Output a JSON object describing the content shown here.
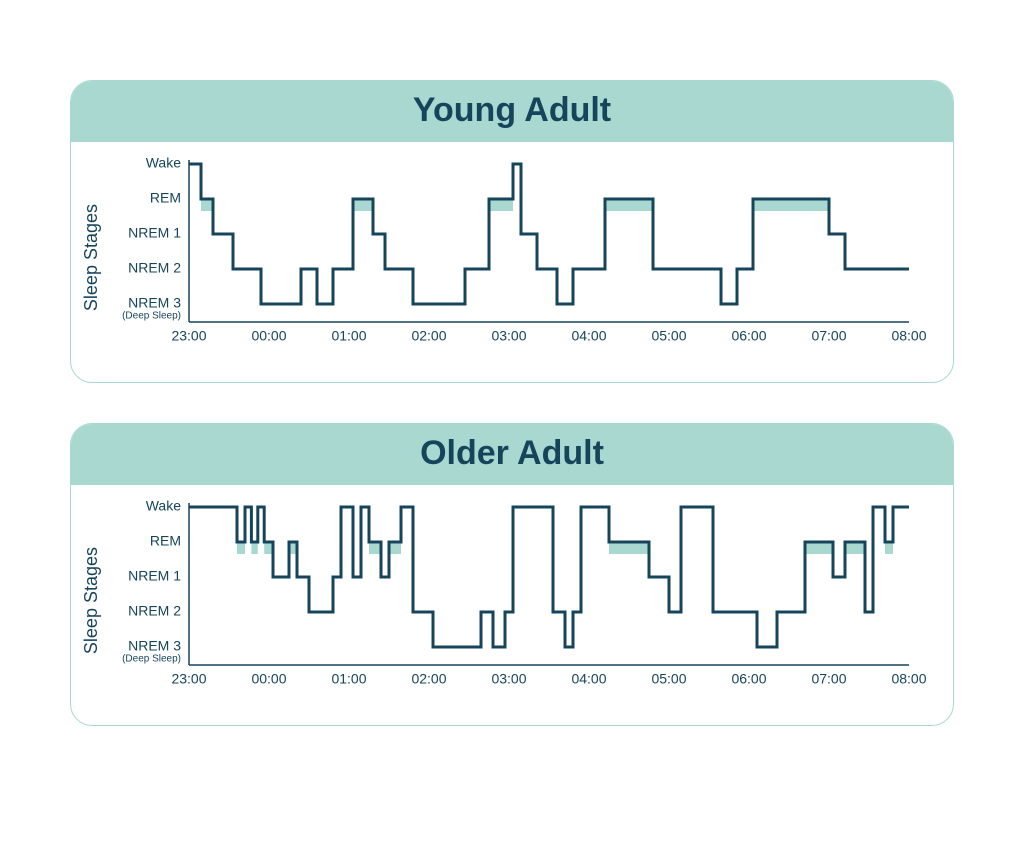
{
  "colors": {
    "background": "#ffffff",
    "accent": "#a9d8d1",
    "ink": "#16445b",
    "rem_fill": "#a9d8d1"
  },
  "layout": {
    "page_padding_top": 80,
    "page_padding_x": 70,
    "panel_gap": 40,
    "panel_border_radius": 22,
    "chart_inner_height": 160,
    "chart_inner_width": 720
  },
  "stages": {
    "labels": [
      "Wake",
      "REM",
      "NREM 1",
      "NREM 2",
      "NREM 3"
    ],
    "sublabels": {
      "4": "(Deep Sleep)"
    },
    "axis_title": "Sleep Stages",
    "y_values": {
      "Wake": 0,
      "REM": 1,
      "NREM 1": 2,
      "NREM 2": 3,
      "NREM 3": 4
    },
    "rem_level": 1,
    "rem_fill_height": 12
  },
  "time_axis": {
    "start_hour": 23,
    "end_hour": 32,
    "tick_hours": [
      23,
      24,
      25,
      26,
      27,
      28,
      29,
      30,
      31,
      32
    ],
    "tick_labels": [
      "23:00",
      "00:00",
      "01:00",
      "02:00",
      "03:00",
      "04:00",
      "05:00",
      "06:00",
      "07:00",
      "08:00"
    ]
  },
  "line_style": {
    "stroke_width": 3,
    "stroke_color": "#16445b"
  },
  "typography": {
    "title_fontsize": 34,
    "title_weight": 700,
    "axis_title_fontsize": 18,
    "stage_label_fontsize": 14,
    "stage_sublabel_fontsize": 10,
    "time_label_fontsize": 14
  },
  "panels": [
    {
      "id": "young",
      "title": "Young Adult",
      "series": [
        {
          "t": 23.0,
          "s": 0
        },
        {
          "t": 23.15,
          "s": 0
        },
        {
          "t": 23.15,
          "s": 1
        },
        {
          "t": 23.3,
          "s": 1
        },
        {
          "t": 23.3,
          "s": 2
        },
        {
          "t": 23.55,
          "s": 2
        },
        {
          "t": 23.55,
          "s": 3
        },
        {
          "t": 23.9,
          "s": 3
        },
        {
          "t": 23.9,
          "s": 4
        },
        {
          "t": 24.4,
          "s": 4
        },
        {
          "t": 24.4,
          "s": 3
        },
        {
          "t": 24.6,
          "s": 3
        },
        {
          "t": 24.6,
          "s": 4
        },
        {
          "t": 24.8,
          "s": 4
        },
        {
          "t": 24.8,
          "s": 3
        },
        {
          "t": 25.05,
          "s": 3
        },
        {
          "t": 25.05,
          "s": 1
        },
        {
          "t": 25.3,
          "s": 1
        },
        {
          "t": 25.3,
          "s": 2
        },
        {
          "t": 25.45,
          "s": 2
        },
        {
          "t": 25.45,
          "s": 3
        },
        {
          "t": 25.8,
          "s": 3
        },
        {
          "t": 25.8,
          "s": 4
        },
        {
          "t": 26.45,
          "s": 4
        },
        {
          "t": 26.45,
          "s": 3
        },
        {
          "t": 26.75,
          "s": 3
        },
        {
          "t": 26.75,
          "s": 1
        },
        {
          "t": 27.05,
          "s": 1
        },
        {
          "t": 27.05,
          "s": 0
        },
        {
          "t": 27.15,
          "s": 0
        },
        {
          "t": 27.15,
          "s": 2
        },
        {
          "t": 27.35,
          "s": 2
        },
        {
          "t": 27.35,
          "s": 3
        },
        {
          "t": 27.6,
          "s": 3
        },
        {
          "t": 27.6,
          "s": 4
        },
        {
          "t": 27.8,
          "s": 4
        },
        {
          "t": 27.8,
          "s": 3
        },
        {
          "t": 28.2,
          "s": 3
        },
        {
          "t": 28.2,
          "s": 1
        },
        {
          "t": 28.8,
          "s": 1
        },
        {
          "t": 28.8,
          "s": 3
        },
        {
          "t": 29.65,
          "s": 3
        },
        {
          "t": 29.65,
          "s": 4
        },
        {
          "t": 29.85,
          "s": 4
        },
        {
          "t": 29.85,
          "s": 3
        },
        {
          "t": 30.05,
          "s": 3
        },
        {
          "t": 30.05,
          "s": 1
        },
        {
          "t": 31.0,
          "s": 1
        },
        {
          "t": 31.0,
          "s": 2
        },
        {
          "t": 31.2,
          "s": 2
        },
        {
          "t": 31.2,
          "s": 3
        },
        {
          "t": 32.0,
          "s": 3
        }
      ]
    },
    {
      "id": "older",
      "title": "Older Adult",
      "series": [
        {
          "t": 23.0,
          "s": 0
        },
        {
          "t": 23.6,
          "s": 0
        },
        {
          "t": 23.6,
          "s": 1
        },
        {
          "t": 23.7,
          "s": 1
        },
        {
          "t": 23.7,
          "s": 0
        },
        {
          "t": 23.78,
          "s": 0
        },
        {
          "t": 23.78,
          "s": 1
        },
        {
          "t": 23.86,
          "s": 1
        },
        {
          "t": 23.86,
          "s": 0
        },
        {
          "t": 23.94,
          "s": 0
        },
        {
          "t": 23.94,
          "s": 1
        },
        {
          "t": 24.05,
          "s": 1
        },
        {
          "t": 24.05,
          "s": 2
        },
        {
          "t": 24.25,
          "s": 2
        },
        {
          "t": 24.25,
          "s": 1
        },
        {
          "t": 24.35,
          "s": 1
        },
        {
          "t": 24.35,
          "s": 2
        },
        {
          "t": 24.5,
          "s": 2
        },
        {
          "t": 24.5,
          "s": 3
        },
        {
          "t": 24.8,
          "s": 3
        },
        {
          "t": 24.8,
          "s": 2
        },
        {
          "t": 24.9,
          "s": 2
        },
        {
          "t": 24.9,
          "s": 0
        },
        {
          "t": 25.05,
          "s": 0
        },
        {
          "t": 25.05,
          "s": 2
        },
        {
          "t": 25.15,
          "s": 2
        },
        {
          "t": 25.15,
          "s": 0
        },
        {
          "t": 25.25,
          "s": 0
        },
        {
          "t": 25.25,
          "s": 1
        },
        {
          "t": 25.4,
          "s": 1
        },
        {
          "t": 25.4,
          "s": 2
        },
        {
          "t": 25.5,
          "s": 2
        },
        {
          "t": 25.5,
          "s": 1
        },
        {
          "t": 25.65,
          "s": 1
        },
        {
          "t": 25.65,
          "s": 0
        },
        {
          "t": 25.8,
          "s": 0
        },
        {
          "t": 25.8,
          "s": 3
        },
        {
          "t": 26.05,
          "s": 3
        },
        {
          "t": 26.05,
          "s": 4
        },
        {
          "t": 26.65,
          "s": 4
        },
        {
          "t": 26.65,
          "s": 3
        },
        {
          "t": 26.8,
          "s": 3
        },
        {
          "t": 26.8,
          "s": 4
        },
        {
          "t": 26.95,
          "s": 4
        },
        {
          "t": 26.95,
          "s": 3
        },
        {
          "t": 27.05,
          "s": 3
        },
        {
          "t": 27.05,
          "s": 0
        },
        {
          "t": 27.55,
          "s": 0
        },
        {
          "t": 27.55,
          "s": 3
        },
        {
          "t": 27.7,
          "s": 3
        },
        {
          "t": 27.7,
          "s": 4
        },
        {
          "t": 27.8,
          "s": 4
        },
        {
          "t": 27.8,
          "s": 3
        },
        {
          "t": 27.9,
          "s": 3
        },
        {
          "t": 27.9,
          "s": 0
        },
        {
          "t": 28.25,
          "s": 0
        },
        {
          "t": 28.25,
          "s": 1
        },
        {
          "t": 28.75,
          "s": 1
        },
        {
          "t": 28.75,
          "s": 2
        },
        {
          "t": 29.0,
          "s": 2
        },
        {
          "t": 29.0,
          "s": 3
        },
        {
          "t": 29.15,
          "s": 3
        },
        {
          "t": 29.15,
          "s": 0
        },
        {
          "t": 29.55,
          "s": 0
        },
        {
          "t": 29.55,
          "s": 3
        },
        {
          "t": 30.1,
          "s": 3
        },
        {
          "t": 30.1,
          "s": 4
        },
        {
          "t": 30.35,
          "s": 4
        },
        {
          "t": 30.35,
          "s": 3
        },
        {
          "t": 30.7,
          "s": 3
        },
        {
          "t": 30.7,
          "s": 1
        },
        {
          "t": 31.05,
          "s": 1
        },
        {
          "t": 31.05,
          "s": 2
        },
        {
          "t": 31.2,
          "s": 2
        },
        {
          "t": 31.2,
          "s": 1
        },
        {
          "t": 31.45,
          "s": 1
        },
        {
          "t": 31.45,
          "s": 3
        },
        {
          "t": 31.55,
          "s": 3
        },
        {
          "t": 31.55,
          "s": 0
        },
        {
          "t": 31.7,
          "s": 0
        },
        {
          "t": 31.7,
          "s": 1
        },
        {
          "t": 31.8,
          "s": 1
        },
        {
          "t": 31.8,
          "s": 0
        },
        {
          "t": 32.0,
          "s": 0
        }
      ]
    }
  ]
}
